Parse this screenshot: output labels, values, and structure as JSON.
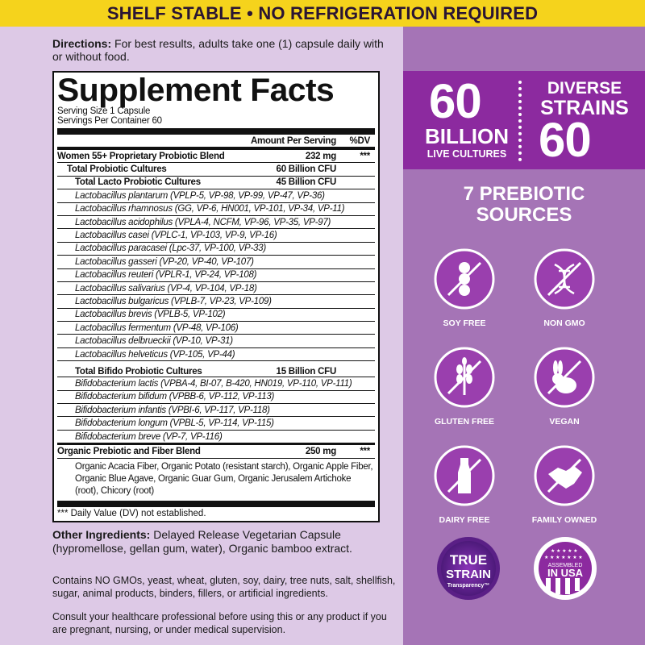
{
  "banner": "SHELF STABLE • NO REFRIGERATION REQUIRED",
  "directions": {
    "label": "Directions:",
    "text": " For best results, adults take one (1) capsule daily with or without food."
  },
  "facts": {
    "title": "Supplement Facts",
    "serving_size": "Serving Size 1 Capsule",
    "servings_per_container": "Servings Per Container 60",
    "col_amount": "Amount Per Serving",
    "col_dv": "%DV",
    "blend": {
      "name": "Women 55+ Proprietary Probiotic Blend",
      "amount": "232 mg",
      "dv": "***"
    },
    "total": {
      "name": "Total Probiotic Cultures",
      "amount": "60 Billion CFU"
    },
    "lacto": {
      "name": "Total Lacto Probiotic Cultures",
      "amount": "45 Billion CFU",
      "strains": [
        "Lactobacillus plantarum (VPLP-5, VP-98, VP-99, VP-47, VP-36)",
        "Lactobacillus rhamnosus (GG, VP-6, HN001, VP-101, VP-34, VP-11)",
        "Lactobacillus acidophilus (VPLA-4, NCFM, VP-96, VP-35, VP-97)",
        "Lactobacillus casei (VPLC-1, VP-103, VP-9, VP-16)",
        "Lactobacillus paracasei (Lpc-37, VP-100, VP-33)",
        "Lactobacillus gasseri (VP-20, VP-40, VP-107)",
        "Lactobacillus reuteri (VPLR-1, VP-24, VP-108)",
        "Lactobacillus salivarius (VP-4, VP-104, VP-18)",
        "Lactobacillus bulgaricus (VPLB-7, VP-23, VP-109)",
        "Lactobacillus brevis (VPLB-5, VP-102)",
        "Lactobacillus fermentum (VP-48, VP-106)",
        "Lactobacillus delbrueckii (VP-10, VP-31)",
        "Lactobacillus helveticus (VP-105, VP-44)"
      ]
    },
    "bifido": {
      "name": "Total Bifido Probiotic Cultures",
      "amount": "15 Billion CFU",
      "strains": [
        "Bifidobacterium lactis (VPBA-4, BI-07, B-420, HN019, VP-110, VP-111)",
        "Bifidobacterium bifidum (VPBB-6, VP-112, VP-113)",
        "Bifidobacterium infantis (VPBI-6, VP-117, VP-118)",
        "Bifidobacterium longum (VPBL-5, VP-114, VP-115)",
        "Bifidobacterium breve (VP-7, VP-116)"
      ]
    },
    "prebiotic": {
      "name": "Organic Prebiotic and Fiber Blend",
      "amount": "250 mg",
      "dv": "***",
      "ingredients": "Organic Acacia Fiber, Organic Potato (resistant starch), Organic Apple Fiber, Organic Blue Agave, Organic Guar Gum, Organic Jerusalem Artichoke (root), Chicory (root)"
    },
    "footnote": "*** Daily Value (DV) not established."
  },
  "other": {
    "label": "Other Ingredients:",
    "text": " Delayed Release Vegetarian Capsule (hypromellose, gellan gum, water), Organic bamboo extract."
  },
  "contains": "Contains NO GMOs, yeast, wheat, gluten, soy, dairy, tree nuts, salt, shellfish, sugar, animal products, binders, fillers, or artificial ingredients.",
  "consult": "Consult your healthcare professional before using this or any product if you are pregnant, nursing, or under medical supervision.",
  "highlights": {
    "cultures_number": "60",
    "cultures_unit": "BILLION",
    "cultures_label": "LIVE CULTURES",
    "strains_line1": "DIVERSE",
    "strains_line2": "STRAINS",
    "strains_number": "60"
  },
  "prebiotic_sources": "7 PREBIOTIC SOURCES",
  "badges": [
    {
      "label": "SOY FREE",
      "icon": "soy-free-icon"
    },
    {
      "label": "NON GMO",
      "icon": "non-gmo-icon"
    },
    {
      "label": "GLUTEN FREE",
      "icon": "gluten-free-icon"
    },
    {
      "label": "VEGAN",
      "icon": "vegan-rabbit-icon"
    },
    {
      "label": "DAIRY FREE",
      "icon": "dairy-free-icon"
    },
    {
      "label": "FAMILY OWNED",
      "icon": "handshake-icon"
    }
  ],
  "seals": {
    "true_strain": [
      "TRUE",
      "STRAIN",
      "Transparency™"
    ],
    "usa": [
      "ASSEMBLED",
      "IN USA"
    ]
  },
  "colors": {
    "banner": "#f5d31c",
    "left_bg": "#ddc9e6",
    "right_bg": "#a574b6",
    "purple": "#8c2a9f",
    "badge": "#9a3fae"
  }
}
